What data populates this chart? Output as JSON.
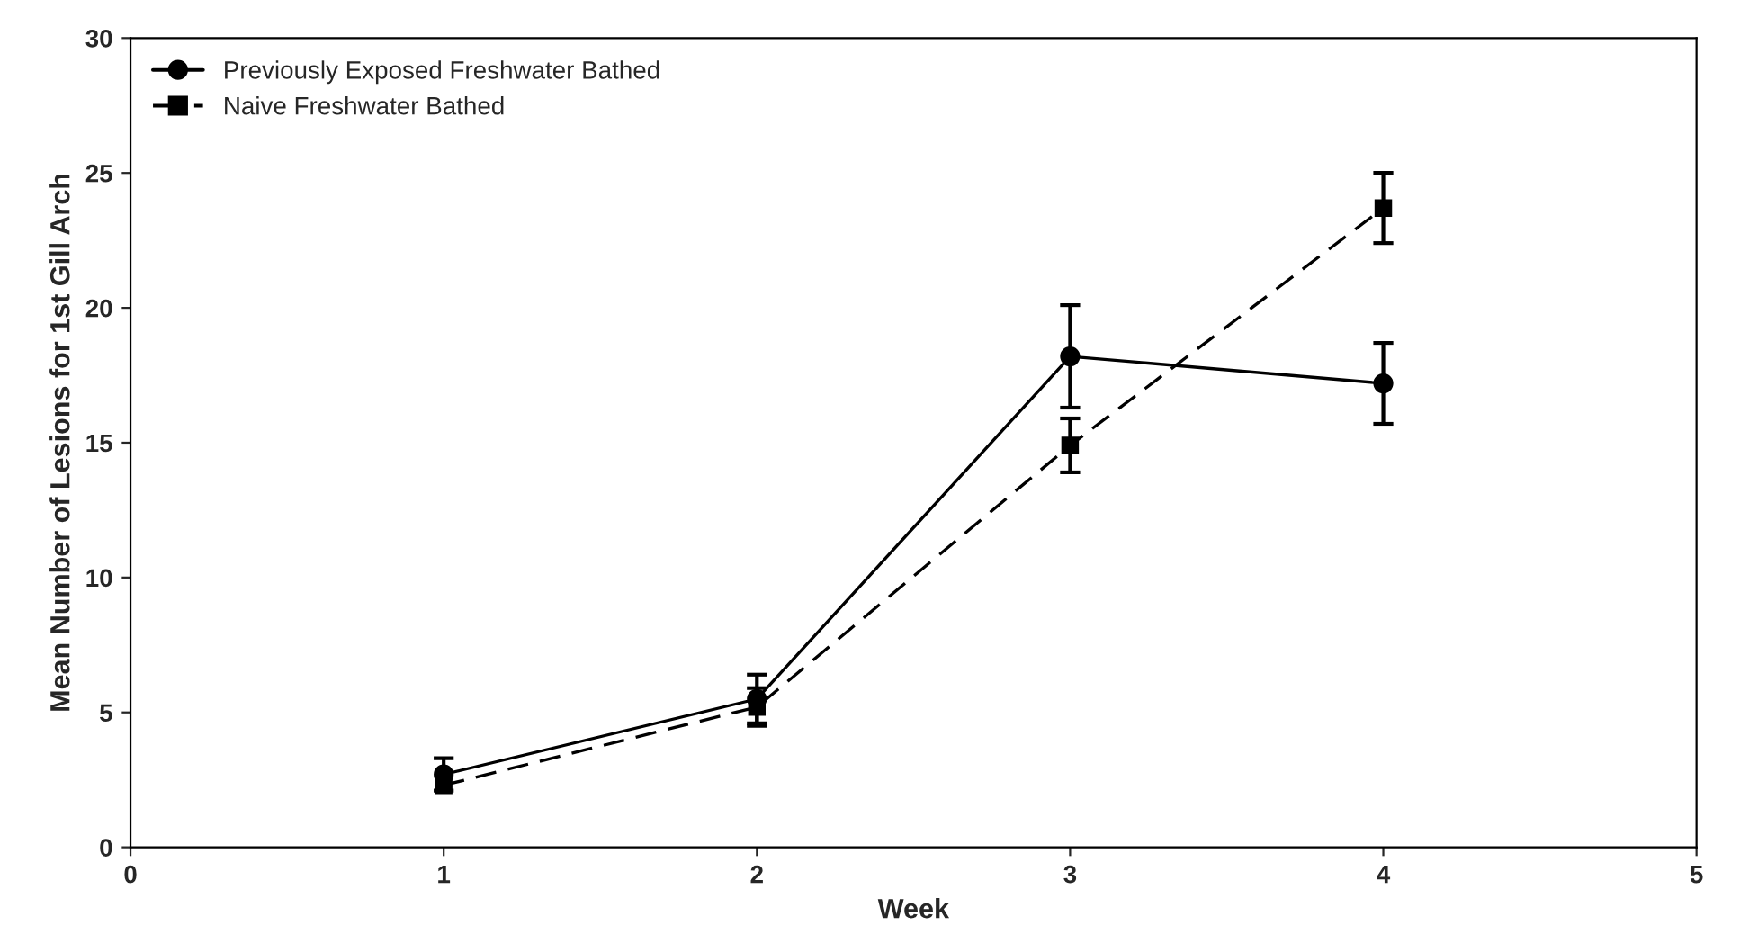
{
  "chart_data": {
    "type": "line",
    "xlabel": "Week",
    "ylabel": "Mean Number of Lesions for 1st Gill Arch",
    "x": [
      1,
      2,
      3,
      4
    ],
    "series": [
      {
        "name": "Previously Exposed Freshwater Bathed",
        "color": "#000000",
        "values": [
          2.7,
          5.5,
          18.2,
          17.2
        ],
        "errors": [
          0.6,
          0.9,
          1.9,
          1.5
        ],
        "marker": "circle",
        "line_style": "solid"
      },
      {
        "name": "Naive Freshwater Bathed",
        "color": "#000000",
        "values": [
          2.3,
          5.2,
          14.9,
          23.7
        ],
        "errors": [
          null,
          0.7,
          1.0,
          1.3
        ],
        "marker": "square",
        "line_style": "dashed"
      }
    ],
    "xlim": [
      0,
      5
    ],
    "xticks": [
      0,
      1,
      2,
      3,
      4,
      5
    ],
    "ylim": [
      0,
      30
    ],
    "yticks": [
      0,
      5,
      10,
      15,
      20,
      25,
      30
    ],
    "grid": false,
    "legend": "top left"
  }
}
